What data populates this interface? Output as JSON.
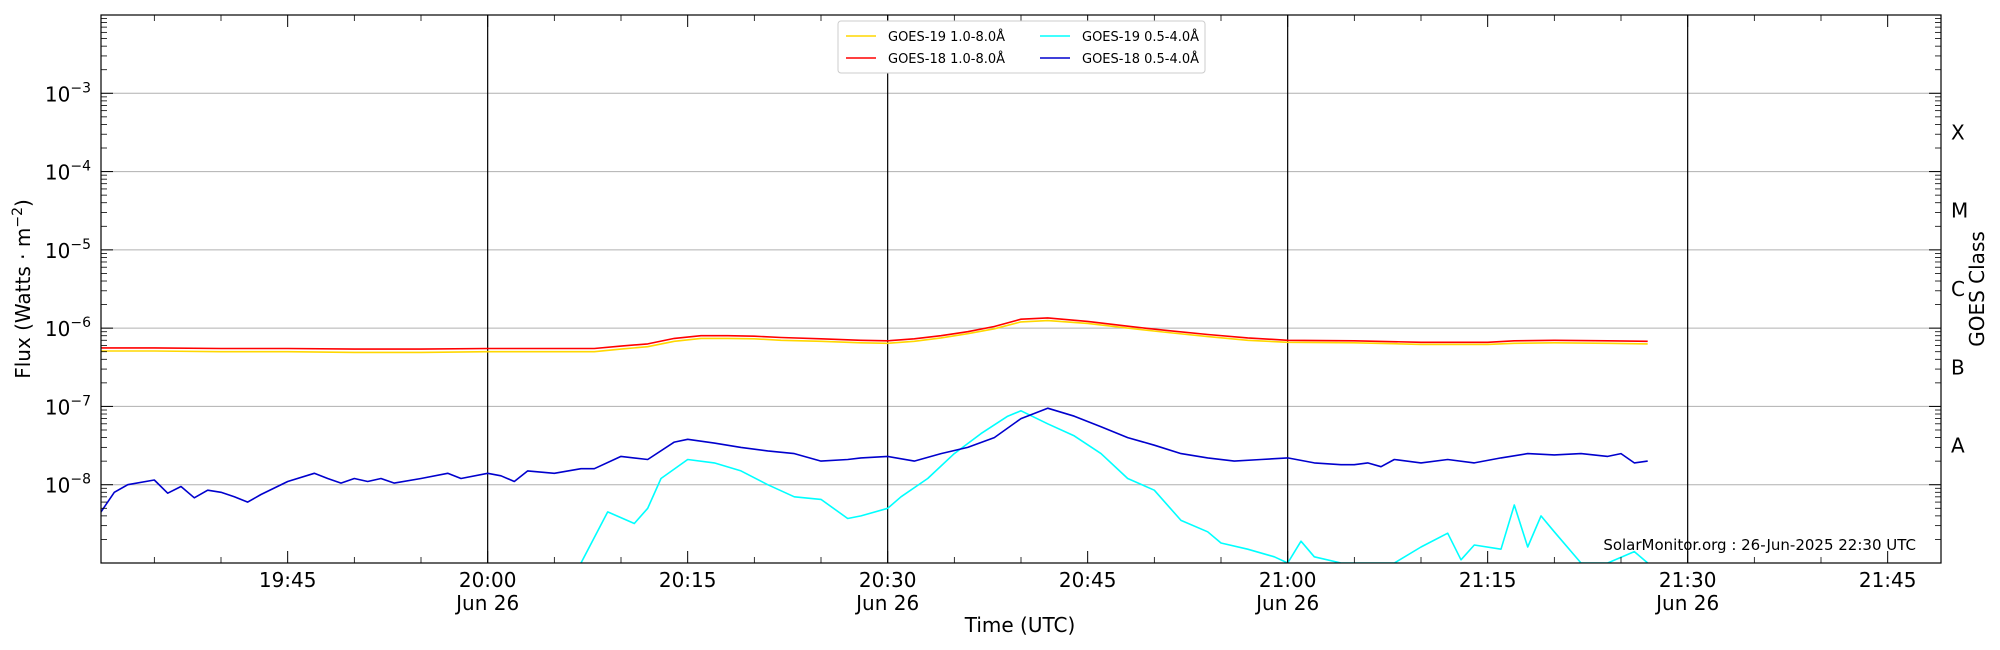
{
  "chart_data": {
    "type": "line",
    "xlabel": "Time (UTC)",
    "ylabel": "Flux (Watts · m",
    "ylabel_sup": "−2",
    "ylabel_close": ")",
    "y2label": "GOES Class",
    "y_scale": "log",
    "ylim": [
      1e-09,
      0.01
    ],
    "xlim": [
      "19:31",
      "21:49"
    ],
    "grid": "horizontal at decades",
    "legend_position": "top-center",
    "y_ticks": [
      {
        "value": 1e-08,
        "mant": "10",
        "exp": "−8"
      },
      {
        "value": 1e-07,
        "mant": "10",
        "exp": "−7"
      },
      {
        "value": 1e-06,
        "mant": "10",
        "exp": "−6"
      },
      {
        "value": 1e-05,
        "mant": "10",
        "exp": "−5"
      },
      {
        "value": 0.0001,
        "mant": "10",
        "exp": "−4"
      },
      {
        "value": 0.001,
        "mant": "10",
        "exp": "−3"
      }
    ],
    "x_ticks": [
      {
        "time": "19:45",
        "label": "19:45",
        "sublabel": ""
      },
      {
        "time": "20:00",
        "label": "20:00",
        "sublabel": "Jun 26"
      },
      {
        "time": "20:15",
        "label": "20:15",
        "sublabel": ""
      },
      {
        "time": "20:30",
        "label": "20:30",
        "sublabel": "Jun 26"
      },
      {
        "time": "20:45",
        "label": "20:45",
        "sublabel": ""
      },
      {
        "time": "21:00",
        "label": "21:00",
        "sublabel": "Jun 26"
      },
      {
        "time": "21:15",
        "label": "21:15",
        "sublabel": ""
      },
      {
        "time": "21:30",
        "label": "21:30",
        "sublabel": "Jun 26"
      },
      {
        "time": "21:45",
        "label": "21:45",
        "sublabel": ""
      }
    ],
    "vertical_lines": [
      "20:00",
      "20:30",
      "21:00",
      "21:30"
    ],
    "goes_classes": [
      {
        "label": "A",
        "value": 3.16e-08
      },
      {
        "label": "B",
        "value": 3.16e-07
      },
      {
        "label": "C",
        "value": 3.16e-06
      },
      {
        "label": "M",
        "value": 3.16e-05
      },
      {
        "label": "X",
        "value": 0.000316
      }
    ],
    "series": [
      {
        "name": "GOES-19 1.0-8.0Å",
        "color": "#ffd700",
        "x": [
          "19:31",
          "19:35",
          "19:40",
          "19:45",
          "19:50",
          "19:55",
          "20:00",
          "20:05",
          "20:08",
          "20:10",
          "20:12",
          "20:14",
          "20:16",
          "20:18",
          "20:20",
          "20:22",
          "20:25",
          "20:28",
          "20:30",
          "20:32",
          "20:34",
          "20:36",
          "20:38",
          "20:40",
          "20:42",
          "20:45",
          "20:48",
          "20:51",
          "20:54",
          "20:57",
          "21:00",
          "21:05",
          "21:10",
          "21:15",
          "21:17",
          "21:20",
          "21:24",
          "21:27"
        ],
        "y": [
          5.1e-07,
          5.1e-07,
          5e-07,
          5e-07,
          4.9e-07,
          4.9e-07,
          5e-07,
          5e-07,
          5e-07,
          5.4e-07,
          5.8e-07,
          6.8e-07,
          7.4e-07,
          7.4e-07,
          7.3e-07,
          7e-07,
          6.8e-07,
          6.5e-07,
          6.4e-07,
          6.8e-07,
          7.5e-07,
          8.5e-07,
          9.8e-07,
          1.2e-06,
          1.25e-06,
          1.15e-06,
          1e-06,
          8.8e-07,
          7.8e-07,
          7e-07,
          6.6e-07,
          6.5e-07,
          6.2e-07,
          6.2e-07,
          6.4e-07,
          6.5e-07,
          6.4e-07,
          6.3e-07
        ]
      },
      {
        "name": "GOES-18 1.0-8.0Å",
        "color": "#ff0000",
        "x": [
          "19:31",
          "19:35",
          "19:40",
          "19:45",
          "19:50",
          "19:55",
          "20:00",
          "20:05",
          "20:08",
          "20:10",
          "20:12",
          "20:14",
          "20:16",
          "20:18",
          "20:20",
          "20:22",
          "20:25",
          "20:28",
          "20:30",
          "20:32",
          "20:34",
          "20:36",
          "20:38",
          "20:40",
          "20:42",
          "20:45",
          "20:48",
          "20:51",
          "20:54",
          "20:57",
          "21:00",
          "21:05",
          "21:10",
          "21:15",
          "21:17",
          "21:20",
          "21:24",
          "21:27"
        ],
        "y": [
          5.6e-07,
          5.6e-07,
          5.5e-07,
          5.5e-07,
          5.4e-07,
          5.4e-07,
          5.5e-07,
          5.5e-07,
          5.5e-07,
          5.9e-07,
          6.3e-07,
          7.4e-07,
          8e-07,
          8e-07,
          7.9e-07,
          7.6e-07,
          7.3e-07,
          7e-07,
          6.9e-07,
          7.3e-07,
          8e-07,
          9e-07,
          1.05e-06,
          1.3e-06,
          1.35e-06,
          1.22e-06,
          1.06e-06,
          9.3e-07,
          8.3e-07,
          7.5e-07,
          7e-07,
          6.9e-07,
          6.6e-07,
          6.6e-07,
          6.9e-07,
          7e-07,
          6.9e-07,
          6.8e-07
        ]
      },
      {
        "name": "GOES-19 0.5-4.0Å",
        "color": "#00ffff",
        "x": [
          "20:07",
          "20:09",
          "20:11",
          "20:12",
          "20:13",
          "20:15",
          "20:17",
          "20:19",
          "20:21",
          "20:23",
          "20:25",
          "20:27",
          "20:28",
          "20:30",
          "20:31",
          "20:33",
          "20:35",
          "20:37",
          "20:39",
          "20:40",
          "20:42",
          "20:44",
          "20:46",
          "20:48",
          "20:50",
          "20:52",
          "20:54",
          "20:55",
          "20:57",
          "20:59",
          "21:00",
          "21:01",
          "21:02",
          "21:04",
          "21:06",
          "21:08",
          "21:10",
          "21:12",
          "21:13",
          "21:14",
          "21:16",
          "21:17",
          "21:18",
          "21:19",
          "21:20",
          "21:22",
          "21:24",
          "21:26",
          "21:27"
        ],
        "y": [
          1e-09,
          4.5e-09,
          3.2e-09,
          5e-09,
          1.2e-08,
          2.1e-08,
          1.9e-08,
          1.5e-08,
          1e-08,
          7e-09,
          6.5e-09,
          3.7e-09,
          4e-09,
          5e-09,
          7e-09,
          1.2e-08,
          2.5e-08,
          4.5e-08,
          7.5e-08,
          8.8e-08,
          6e-08,
          4.2e-08,
          2.5e-08,
          1.2e-08,
          8.5e-09,
          3.5e-09,
          2.5e-09,
          1.8e-09,
          1.5e-09,
          1.2e-09,
          1e-09,
          1.9e-09,
          1.2e-09,
          1e-09,
          1e-09,
          1e-09,
          1.6e-09,
          2.4e-09,
          1.1e-09,
          1.7e-09,
          1.5e-09,
          5.5e-09,
          1.6e-09,
          4e-09,
          2.5e-09,
          1e-09,
          1e-09,
          1.4e-09,
          1e-09
        ]
      },
      {
        "name": "GOES-18 0.5-4.0Å",
        "color": "#0000cd",
        "x": [
          "19:31",
          "19:32",
          "19:33",
          "19:35",
          "19:36",
          "19:37",
          "19:38",
          "19:39",
          "19:40",
          "19:41",
          "19:42",
          "19:43",
          "19:45",
          "19:47",
          "19:48",
          "19:49",
          "19:50",
          "19:51",
          "19:52",
          "19:53",
          "19:55",
          "19:57",
          "19:58",
          "20:00",
          "20:01",
          "20:02",
          "20:03",
          "20:05",
          "20:07",
          "20:08",
          "20:10",
          "20:12",
          "20:14",
          "20:15",
          "20:17",
          "20:19",
          "20:21",
          "20:23",
          "20:25",
          "20:27",
          "20:28",
          "20:30",
          "20:32",
          "20:34",
          "20:36",
          "20:38",
          "20:40",
          "20:42",
          "20:44",
          "20:46",
          "20:48",
          "20:50",
          "20:52",
          "20:54",
          "20:56",
          "20:58",
          "21:00",
          "21:02",
          "21:04",
          "21:05",
          "21:06",
          "21:07",
          "21:08",
          "21:10",
          "21:12",
          "21:14",
          "21:16",
          "21:18",
          "21:20",
          "21:22",
          "21:24",
          "21:25",
          "21:26",
          "21:27"
        ],
        "y": [
          4.5e-09,
          8e-09,
          1e-08,
          1.15e-08,
          7.8e-09,
          9.5e-09,
          6.8e-09,
          8.5e-09,
          8e-09,
          7e-09,
          6e-09,
          7.5e-09,
          1.1e-08,
          1.4e-08,
          1.2e-08,
          1.05e-08,
          1.2e-08,
          1.1e-08,
          1.2e-08,
          1.05e-08,
          1.2e-08,
          1.4e-08,
          1.2e-08,
          1.4e-08,
          1.3e-08,
          1.1e-08,
          1.5e-08,
          1.4e-08,
          1.6e-08,
          1.6e-08,
          2.3e-08,
          2.1e-08,
          3.5e-08,
          3.8e-08,
          3.4e-08,
          3e-08,
          2.7e-08,
          2.5e-08,
          2e-08,
          2.1e-08,
          2.2e-08,
          2.3e-08,
          2e-08,
          2.5e-08,
          3e-08,
          4e-08,
          7e-08,
          9.5e-08,
          7.5e-08,
          5.5e-08,
          4e-08,
          3.2e-08,
          2.5e-08,
          2.2e-08,
          2e-08,
          2.1e-08,
          2.2e-08,
          1.9e-08,
          1.8e-08,
          1.8e-08,
          1.9e-08,
          1.7e-08,
          2.1e-08,
          1.9e-08,
          2.1e-08,
          1.9e-08,
          2.2e-08,
          2.5e-08,
          2.4e-08,
          2.5e-08,
          2.3e-08,
          2.5e-08,
          1.9e-08,
          2e-08
        ]
      }
    ]
  },
  "watermark": "SolarMonitor.org : 26-Jun-2025 22:30 UTC"
}
